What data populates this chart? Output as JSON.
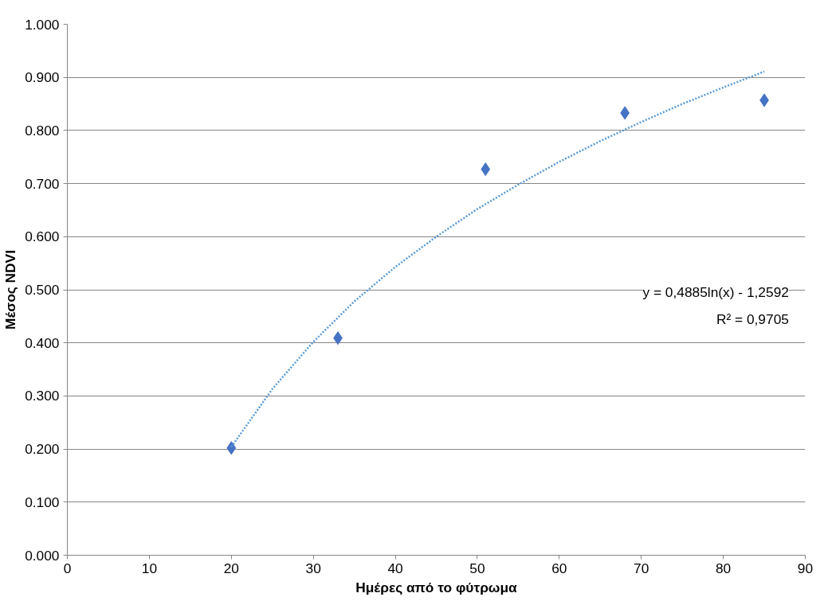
{
  "chart_data": {
    "type": "scatter",
    "xlabel": "Ημέρες από το φύτρωμα",
    "ylabel": "Μέσος NDVI",
    "x": [
      20,
      33,
      51,
      68,
      85
    ],
    "series": [
      {
        "color": "#4472c4",
        "marker": "diamond",
        "values": [
          0.202,
          0.409,
          0.727,
          0.833,
          0.857
        ]
      },
      {
        "type": "line",
        "color": "#5b9bd5",
        "line_style": "dotted",
        "marker": "none",
        "x": [
          20,
          25,
          30,
          35,
          40,
          45,
          50,
          55,
          60,
          65,
          70,
          75,
          80,
          85
        ],
        "values": [
          0.204,
          0.313,
          0.402,
          0.478,
          0.543,
          0.6,
          0.652,
          0.698,
          0.741,
          0.78,
          0.816,
          0.85,
          0.881,
          0.911
        ]
      }
    ],
    "annotations": [
      "y = 0,4885ln(x) - 1,2592",
      "R² = 0,9705"
    ],
    "xlim": [
      0,
      90
    ],
    "xticks": [
      0,
      10,
      20,
      30,
      40,
      50,
      60,
      70,
      80,
      90
    ],
    "ylim": [
      0,
      1
    ],
    "yticks": [
      {
        "value": 0,
        "label": "0.000"
      },
      {
        "value": 0.1,
        "label": "0.100"
      },
      {
        "value": 0.2,
        "label": "0.200"
      },
      {
        "value": 0.3,
        "label": "0.300"
      },
      {
        "value": 0.4,
        "label": "0.400"
      },
      {
        "value": 0.5,
        "label": "0.500"
      },
      {
        "value": 0.6,
        "label": "0.600"
      },
      {
        "value": 0.7,
        "label": "0.700"
      },
      {
        "value": 0.8,
        "label": "0.800"
      },
      {
        "value": 0.9,
        "label": "0.900"
      },
      {
        "value": 1,
        "label": "1.000"
      }
    ],
    "grid": "y"
  }
}
